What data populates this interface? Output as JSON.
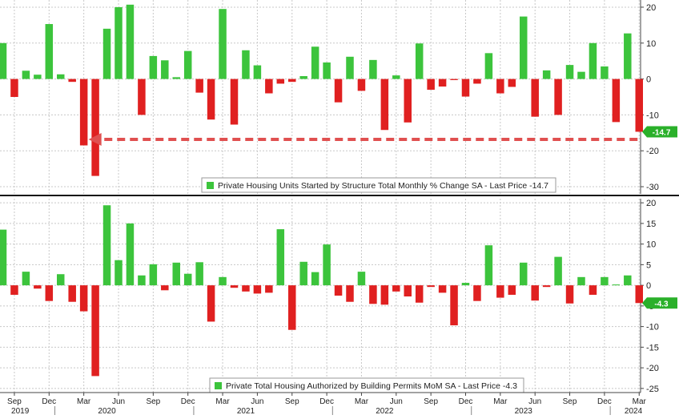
{
  "colors": {
    "positive": "#3cc43c",
    "negative": "#e02020",
    "grid": "#c8c8c8",
    "divider": "#111111",
    "arrow": "#e05050",
    "tag_fill": "#2ab02a",
    "text": "#222222"
  },
  "x_axis": {
    "months": [
      "Sep",
      "Dec",
      "Mar",
      "Jun",
      "Sep",
      "Dec",
      "Mar",
      "Jun",
      "Sep",
      "Dec",
      "Mar",
      "Jun",
      "Sep",
      "Dec",
      "Mar",
      "Jun",
      "Sep",
      "Dec",
      "Mar"
    ],
    "years": [
      "2019",
      "2020",
      "2021",
      "2022",
      "2023",
      "2024"
    ]
  },
  "chart_data": [
    {
      "type": "bar",
      "name": "Private Housing Units Started by Structure Total Monthly % Change SA - Last Price -14.7",
      "legend": "Private Housing Units Started by Structure Total Monthly % Change SA - Last Price -14.7",
      "last_value_label": "-14.7",
      "last_value": -14.7,
      "ylim": [
        -32,
        22
      ],
      "yticks": [
        "20",
        "10",
        "0",
        "-10",
        "-20",
        "-30"
      ],
      "ytick_values": [
        20,
        10,
        0,
        -10,
        -20,
        -30
      ],
      "period": "2019-08 to 2024-03, monthly",
      "values": [
        10,
        -5,
        2.3,
        1.2,
        15.3,
        1.3,
        -0.8,
        -18.5,
        -27,
        14,
        20,
        20.7,
        -10,
        6.4,
        5.2,
        0.5,
        7.8,
        -3.8,
        -11.3,
        19.5,
        -12.7,
        8,
        3.8,
        -4,
        -1.3,
        -0.8,
        0.8,
        9,
        4.6,
        -6.5,
        6.2,
        -3.3,
        5.3,
        -14.2,
        1,
        -12.1,
        9.9,
        -3,
        -2.1,
        -0.3,
        -4.9,
        -1.3,
        7.2,
        -4,
        -2.2,
        17.4,
        -10.5,
        2.4,
        -10,
        3.9,
        2,
        10,
        3.5,
        -12,
        12.7,
        -14.7
      ],
      "arrow": "dashed arrow from the last bar pointing back to the March 2020 bar"
    },
    {
      "type": "bar",
      "name": "Private Total Housing Authorized by Building Permits MoM SA - Last Price -4.3",
      "legend": "Private Total Housing Authorized by Building Permits MoM SA - Last Price -4.3",
      "last_value_label": "-4.3",
      "last_value": -4.3,
      "ylim": [
        -26,
        21
      ],
      "yticks": [
        "20",
        "15",
        "10",
        "5",
        "0",
        "-5",
        "-10",
        "-15",
        "-20",
        "-25"
      ],
      "ytick_values": [
        20,
        15,
        10,
        5,
        0,
        -5,
        -10,
        -15,
        -20,
        -25
      ],
      "period": "2019-08 to 2024-03, monthly",
      "values": [
        13.5,
        -2.3,
        3.3,
        -0.8,
        -3.8,
        2.7,
        -4,
        -6.3,
        -22,
        19.4,
        6.1,
        15,
        2.4,
        5.1,
        -1.2,
        5.5,
        2.8,
        5.6,
        -8.8,
        2,
        -0.6,
        -1.5,
        -2,
        -1.8,
        13.6,
        -10.8,
        5.7,
        3.2,
        9.9,
        -2.5,
        -4,
        3.3,
        -4.5,
        -4.7,
        -1.5,
        -2.7,
        -4.2,
        -0.4,
        -1.8,
        -9.7,
        0.6,
        -3.8,
        9.7,
        -3,
        -2.3,
        5.5,
        -3.7,
        -0.4,
        6.9,
        -4.4,
        2,
        -2.3,
        2,
        0.2,
        2.4,
        -4.3
      ]
    }
  ]
}
